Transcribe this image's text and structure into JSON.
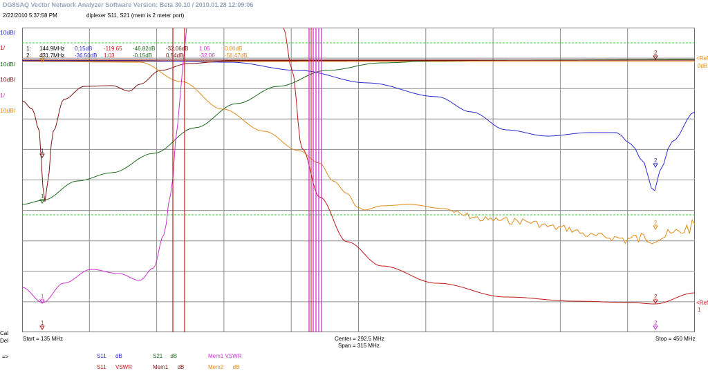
{
  "header": {
    "app_title": "DG8SAQ Vector Network Analyzer Software   Version:  Beta 30.10 / 2010.01.28 12:09:06",
    "datetime": "2/22/2010   5:37:58 PM",
    "subtitle": "diplexer S11, S21 (mem is 2 meter port)"
  },
  "left_scale": [
    {
      "text": "10dB/",
      "color": "#2a2acf"
    },
    {
      "text": "1/",
      "color": "#c01818"
    },
    {
      "text": "10dB/",
      "color": "#1d6b1d"
    },
    {
      "text": "10dB/",
      "color": "#7a1414"
    },
    {
      "text": "1/",
      "color": "#cc33cc"
    },
    {
      "text": "10dB/",
      "color": "#e08a1a"
    }
  ],
  "marker_table": {
    "row1": {
      "label": "1:",
      "freq": "144.9MHz",
      "vals": [
        "0.15dB",
        "-119.65",
        "-46.82dB",
        "-32.06dB",
        "1.05",
        "0.00dB"
      ]
    },
    "row2": {
      "label": "2:",
      "freq": "431.7MHz",
      "vals": [
        "-36.50dB",
        "1.03",
        "-0.15dB",
        "0.54dB",
        "-32.06",
        "-56.47dB"
      ]
    },
    "colors": [
      "#2a2acf",
      "#c01818",
      "#1d6b1d",
      "#7a1414",
      "#cc33cc",
      "#e08a1a"
    ]
  },
  "right_labels": {
    "ref1": "<Ref",
    "zero_db": "0dB",
    "ref2": "<Ref",
    "one": "1"
  },
  "bottom": {
    "cal": "Cal",
    "del": "Del",
    "arrow": "=>",
    "start": "Start = 135 MHz",
    "center": "Center = 292.5 MHz",
    "span": "Span = 315 MHz",
    "stop": "Stop = 450 MHz"
  },
  "legend": [
    {
      "name": "S11",
      "unit": "dB",
      "color": "#2a2acf"
    },
    {
      "name": "S11",
      "unit": "VSWR",
      "color": "#c01818"
    },
    {
      "name": "S21",
      "unit": "dB",
      "color": "#1d6b1d"
    },
    {
      "name": "Mem1",
      "unit": "dB",
      "color": "#7a1414"
    },
    {
      "name": "Mem1",
      "unit": "VSWR",
      "color": "#cc33cc"
    },
    {
      "name": "Mem2",
      "unit": "dB",
      "color": "#e08a1a"
    }
  ],
  "marker_numbers": {
    "m1": "1",
    "m2": "2"
  },
  "chart_data": {
    "type": "line",
    "x_range": [
      135,
      450
    ],
    "x_unit": "MHz",
    "grid": true,
    "series": [
      {
        "name": "S11 dB",
        "color": "#2a2acf"
      },
      {
        "name": "S11 VSWR",
        "color": "#c01818"
      },
      {
        "name": "S21 dB",
        "color": "#1d6b1d"
      },
      {
        "name": "Mem1 dB",
        "color": "#7a1414"
      },
      {
        "name": "Mem1 VSWR",
        "color": "#cc33cc"
      },
      {
        "name": "Mem2 dB",
        "color": "#e08a1a"
      }
    ]
  }
}
